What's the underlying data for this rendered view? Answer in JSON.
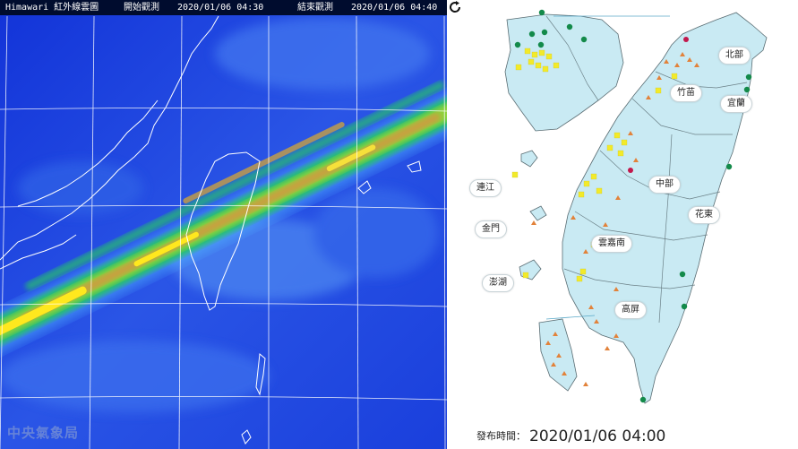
{
  "satellite": {
    "title": "Himawari 紅外線雲圖",
    "start_label": "開始觀測",
    "start_time": "2020/01/06 04:30",
    "end_label": "結束觀測",
    "end_time": "2020/01/06 04:40",
    "logo": "中央氣象局"
  },
  "aq_map": {
    "regions": [
      {
        "key": "north",
        "label": "北部"
      },
      {
        "key": "zhumiao",
        "label": "竹苗"
      },
      {
        "key": "yilan",
        "label": "宜蘭"
      },
      {
        "key": "central",
        "label": "中部"
      },
      {
        "key": "hualien",
        "label": "花東"
      },
      {
        "key": "yunjia",
        "label": "雲嘉南"
      },
      {
        "key": "gaoping",
        "label": "高屏"
      },
      {
        "key": "lianjiang",
        "label": "連江"
      },
      {
        "key": "kinmen",
        "label": "金門"
      },
      {
        "key": "penghu",
        "label": "澎湖"
      }
    ],
    "legend_colors": {
      "good": "#138a4a",
      "moderate": "#f2ea2a",
      "sensitive": "#e2823a",
      "unhealthy": "#c2184c",
      "land": "#c9eaf3",
      "sea": "#ffffff"
    },
    "publish_label": "發布時間：",
    "publish_time": "2020/01/06 04:00",
    "refresh_icon": "refresh-icon"
  }
}
